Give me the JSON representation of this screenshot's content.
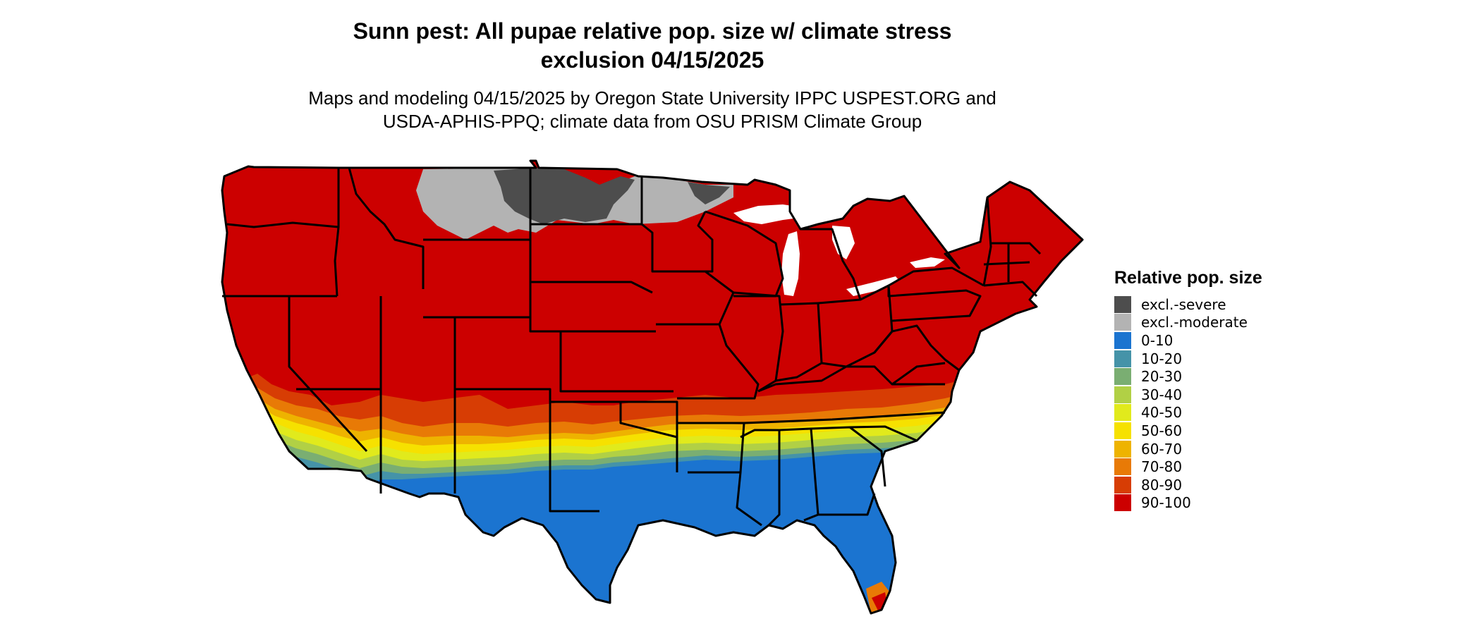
{
  "title": {
    "line1": "Sunn pest: All pupae relative pop. size w/ climate stress",
    "line2": "exclusion 04/15/2025"
  },
  "subtitle": {
    "line1": "Maps and modeling 04/15/2025 by Oregon State University IPPC USPEST.ORG and",
    "line2": "USDA-APHIS-PPQ; climate data from OSU PRISM Climate Group"
  },
  "legend": {
    "title": "Relative pop. size",
    "items": [
      {
        "label": "excl.-severe",
        "color": "#4d4d4d"
      },
      {
        "label": "excl.-moderate",
        "color": "#b3b3b3"
      },
      {
        "label": "0-10",
        "color": "#1b74d0"
      },
      {
        "label": "10-20",
        "color": "#4593a8"
      },
      {
        "label": "20-30",
        "color": "#7aae72"
      },
      {
        "label": "30-40",
        "color": "#b1d045"
      },
      {
        "label": "40-50",
        "color": "#e1ea1c"
      },
      {
        "label": "50-60",
        "color": "#f6e100"
      },
      {
        "label": "60-70",
        "color": "#eeb300"
      },
      {
        "label": "70-80",
        "color": "#e87a06"
      },
      {
        "label": "80-90",
        "color": "#d73d04"
      },
      {
        "label": "90-100",
        "color": "#cc0000"
      }
    ]
  },
  "colors": {
    "state_border": "#000000",
    "background": "#ffffff"
  }
}
